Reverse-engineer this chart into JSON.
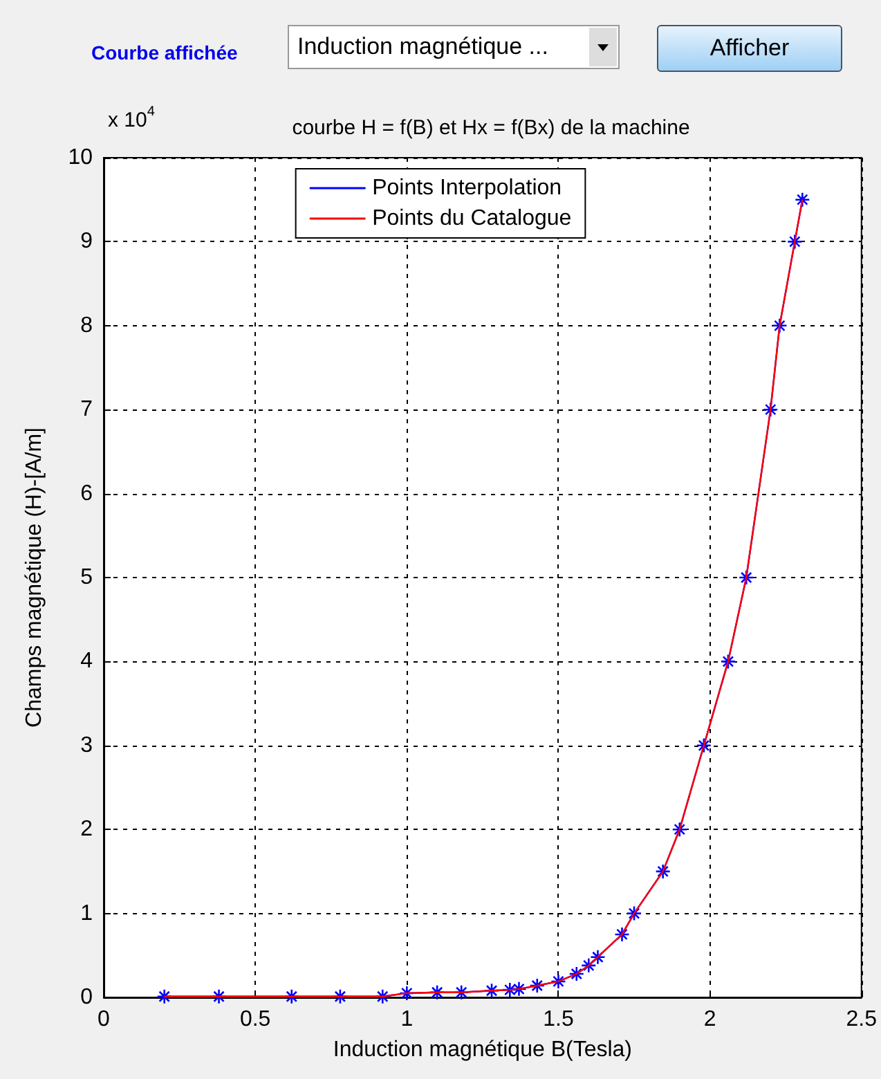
{
  "chart_data": {
    "type": "line",
    "title": "courbe H = f(B) et Hx = f(Bx) de la machine",
    "xlabel": "Induction magnétique B(Tesla)",
    "ylabel": "Champs magnétique (H)-[A/m]",
    "annotations": [
      "Courbe affichée",
      "Induction magnétique ...",
      "Afficher",
      "x 10$^{4}$"
    ],
    "x": [
      0.2,
      0.38,
      0.62,
      0.78,
      0.92,
      1.0,
      1.1,
      1.18,
      1.28,
      1.34,
      1.37,
      1.43,
      1.5,
      1.56,
      1.6,
      1.63,
      1.71,
      1.75,
      1.845,
      1.9,
      1.98,
      2.06,
      2.12,
      2.2,
      2.23,
      2.28,
      2.305
    ],
    "series": [
      {
        "name": "Points Interpolation",
        "color": "#0000ff",
        "marker": "cross",
        "values": [
          0.01,
          0.01,
          0.01,
          0.01,
          0.01,
          0.05,
          0.06,
          0.06,
          0.08,
          0.09,
          0.1,
          0.14,
          0.19,
          0.28,
          0.38,
          0.48,
          0.75,
          1,
          1.5,
          2,
          3,
          4,
          5,
          7,
          8,
          9,
          9.5
        ]
      },
      {
        "name": "Points du Catalogue",
        "color": "#ff0000",
        "marker": "none",
        "values": [
          0.01,
          0.01,
          0.01,
          0.01,
          0.01,
          0.05,
          0.06,
          0.06,
          0.08,
          0.09,
          0.1,
          0.14,
          0.19,
          0.28,
          0.38,
          0.48,
          0.75,
          1,
          1.5,
          2,
          3,
          4,
          5,
          7,
          8,
          9,
          9.5
        ]
      }
    ],
    "xlim": [
      0,
      2.5
    ],
    "xticks": [
      0,
      0.5,
      1,
      1.5,
      2,
      2.5
    ],
    "ylim": [
      0,
      10
    ],
    "yticks": [
      0,
      1,
      2,
      3,
      4,
      5,
      6,
      7,
      8,
      9,
      10
    ],
    "grid": true,
    "legend": "top",
    "line_style": "solid"
  }
}
